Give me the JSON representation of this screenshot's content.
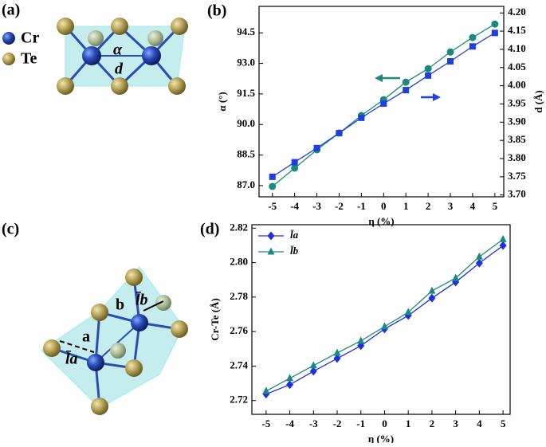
{
  "structures": {
    "a": {
      "label": "(a)",
      "legend": [
        "Cr",
        "Te"
      ],
      "annotations": [
        "α",
        "d"
      ]
    },
    "c": {
      "label": "(c)",
      "annotations": [
        "a",
        "b",
        "l̄a",
        "l̄b"
      ]
    }
  },
  "chart_data": [
    {
      "type": "line",
      "label": "(b)",
      "xlabel": "η (%)",
      "ylabel": "α (°)",
      "y2label": "d (Å)",
      "x": [
        -5,
        -4,
        -3,
        -2,
        -1,
        0,
        1,
        2,
        3,
        4,
        5
      ],
      "xlim": [
        -5.6,
        5.4
      ],
      "xticks": [
        -5,
        -4,
        -3,
        -2,
        -1,
        0,
        1,
        2,
        3,
        4,
        5
      ],
      "ylim": [
        86.45,
        95.8
      ],
      "yticks": [
        {
          "value": 87,
          "label": "87.0"
        },
        88.5,
        {
          "value": 90,
          "label": "90.0"
        },
        91.5,
        {
          "value": 93,
          "label": "93.0"
        },
        94.5
      ],
      "y2lim": [
        3.695,
        4.218
      ],
      "y2ticks": [
        {
          "value": 3.7,
          "label": "3.70"
        },
        3.75,
        {
          "value": 3.8,
          "label": "3.80"
        },
        3.85,
        {
          "value": 3.9,
          "label": "3.90"
        },
        3.95,
        {
          "value": 4,
          "label": "4.00"
        },
        4.05,
        {
          "value": 4.1,
          "label": "4.10"
        },
        4.15,
        {
          "value": 4.2,
          "label": "4.20"
        }
      ],
      "series": [
        {
          "color": "#1a8a80",
          "marker": "circle",
          "values": [
            86.96,
            87.86,
            88.76,
            89.58,
            90.44,
            91.22,
            92.08,
            92.74,
            93.56,
            94.27,
            94.93
          ]
        },
        {
          "color": "#1f3fe0",
          "marker": "square",
          "axis": "y2",
          "values": [
            3.75,
            3.79,
            3.829,
            3.87,
            3.912,
            3.951,
            3.988,
            4.028,
            4.067,
            4.108,
            4.145
          ]
        }
      ]
    },
    {
      "type": "line",
      "label": "(d)",
      "xlabel": "η (%)",
      "ylabel": "Cr-Te (Å)",
      "x": [
        -5,
        -4,
        -3,
        -2,
        -1,
        0,
        1,
        2,
        3,
        4,
        5
      ],
      "xlim": [
        -5.6,
        5.3
      ],
      "xticks": [
        -5,
        -4,
        -3,
        -2,
        -1,
        0,
        1,
        2,
        3,
        4,
        5
      ],
      "ylim": [
        2.712,
        2.822
      ],
      "yticks": [
        2.72,
        2.74,
        2.76,
        2.78,
        {
          "value": 2.8,
          "label": "2.80"
        },
        2.82
      ],
      "legend": "upper left",
      "series": [
        {
          "name": "l̄a",
          "color": "#1f2fe0",
          "marker": "diamond",
          "values": [
            2.7237,
            2.7292,
            2.737,
            2.7444,
            2.7518,
            2.7615,
            2.7693,
            2.7794,
            2.7887,
            2.7997,
            2.8099
          ]
        },
        {
          "name": "l̄b",
          "color": "#1a8a80",
          "marker": "triangle",
          "values": [
            2.7255,
            2.7329,
            2.7403,
            2.7476,
            2.7546,
            2.7629,
            2.7712,
            2.7836,
            2.791,
            2.8034,
            2.8135
          ]
        }
      ]
    }
  ]
}
